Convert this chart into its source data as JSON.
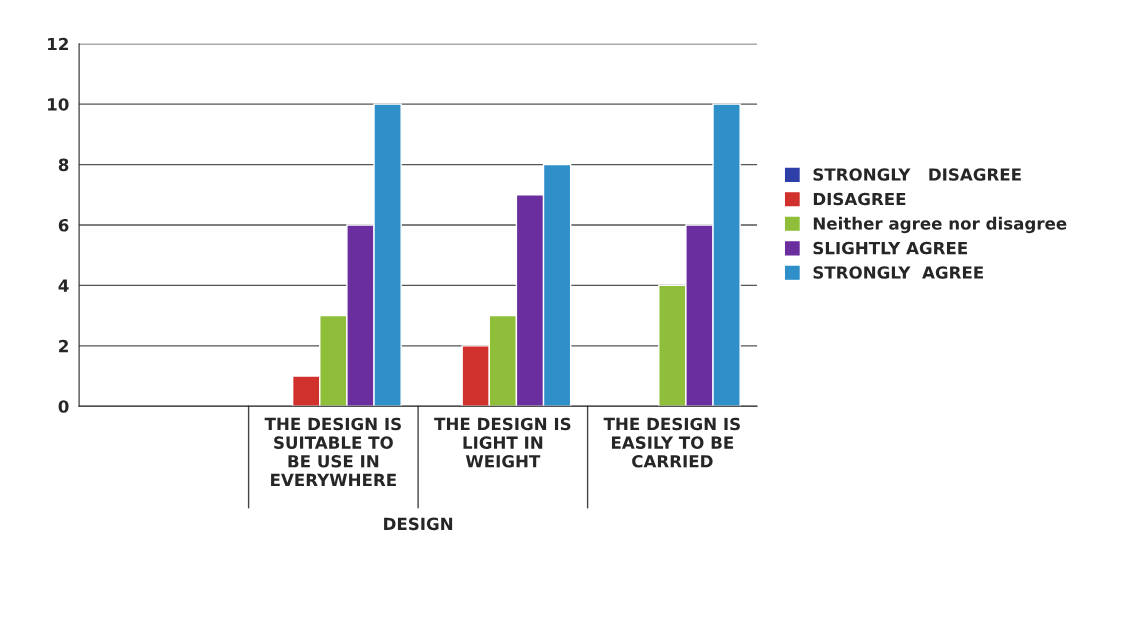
{
  "chart_data": {
    "type": "bar",
    "xlabel": "DESIGN",
    "categories": [
      null,
      "THE DESIGN IS\nSUITABLE TO\nBE USE IN\nEVERYWHERE",
      "THE DESIGN IS\nLIGHT IN\nWEIGHT",
      "THE DESIGN IS\nEASILY TO BE\nCARRIED"
    ],
    "series": [
      {
        "name": "STRONGLY   DISAGREE",
        "color": "#2e3fa8",
        "values": [
          null,
          null,
          null,
          null
        ]
      },
      {
        "name": "DISAGREE",
        "color": "#d0312d",
        "values": [
          null,
          1,
          2,
          null
        ]
      },
      {
        "name": "Neither agree nor disagree",
        "color": "#8fbf3a",
        "values": [
          null,
          3,
          3,
          4
        ]
      },
      {
        "name": "SLIGHTLY AGREE",
        "color": "#6a2e9e",
        "values": [
          null,
          6,
          7,
          6
        ]
      },
      {
        "name": "STRONGLY  AGREE",
        "color": "#2f8fc9",
        "values": [
          null,
          10,
          8,
          10
        ]
      }
    ],
    "ylim": [
      0,
      12
    ],
    "yticks": [
      0,
      2,
      4,
      6,
      8,
      10,
      12
    ],
    "grid": "y",
    "legend": "right"
  }
}
